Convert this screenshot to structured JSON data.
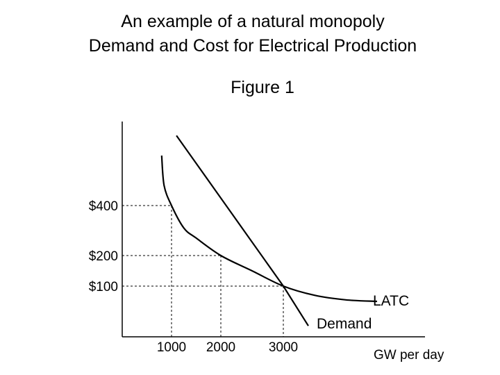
{
  "slide": {
    "title_line1": "An example of a natural monopoly",
    "title_line2": "Demand and Cost for Electrical Production",
    "figure_label": "Figure 1"
  },
  "chart_data": {
    "type": "line",
    "xlabel": "GW per day",
    "ylabel": "",
    "x_ticks": [
      {
        "value": 1000,
        "label": "1000"
      },
      {
        "value": 2000,
        "label": "2000"
      },
      {
        "value": 3000,
        "label": "3000"
      }
    ],
    "y_ticks": [
      {
        "value": 400,
        "label": "$400"
      },
      {
        "value": 200,
        "label": "$200"
      },
      {
        "value": 100,
        "label": "$100"
      }
    ],
    "series": [
      {
        "name": "LATC",
        "x": [
          800,
          850,
          1000,
          1250,
          1500,
          2000,
          2500,
          3000,
          3500,
          4000,
          4500
        ],
        "y": [
          600,
          480,
          400,
          310,
          270,
          200,
          150,
          100,
          70,
          55,
          50
        ]
      },
      {
        "name": "Demand",
        "x": [
          1100,
          3000,
          3400
        ],
        "y": [
          680,
          100,
          -30
        ]
      }
    ],
    "guides": [
      {
        "x": 1000,
        "y": 400
      },
      {
        "x": 2000,
        "y": 200
      },
      {
        "x": 3000,
        "y": 100
      }
    ],
    "grid": false,
    "colors": {
      "axis": "#000000",
      "curve": "#000000",
      "guide": "#000000"
    }
  }
}
